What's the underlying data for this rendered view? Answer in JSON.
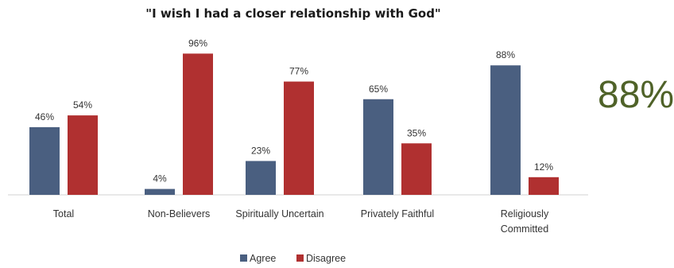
{
  "callout": "88%",
  "colors": {
    "agree": "#4a5f80",
    "disagree": "#b03030",
    "callout": "#4f6228"
  },
  "chart_data": {
    "type": "bar",
    "title": "\"I wish I had a closer relationship with God\"",
    "categories": [
      [
        "Total"
      ],
      [
        "Non-Believers"
      ],
      [
        "Spiritually Uncertain"
      ],
      [
        "Privately Faithful"
      ],
      [
        "Religiously",
        "Committed"
      ]
    ],
    "series": [
      {
        "name": "Agree",
        "values": [
          46,
          4,
          23,
          65,
          88
        ],
        "labels": [
          "46%",
          "4%",
          "23%",
          "65%",
          "88%"
        ]
      },
      {
        "name": "Disagree",
        "values": [
          54,
          96,
          77,
          35,
          12
        ],
        "labels": [
          "54%",
          "96%",
          "77%",
          "35%",
          "12%"
        ]
      }
    ],
    "ylim": [
      0,
      100
    ],
    "grid": false,
    "legend": "bottom",
    "xlabel": "",
    "ylabel": ""
  }
}
